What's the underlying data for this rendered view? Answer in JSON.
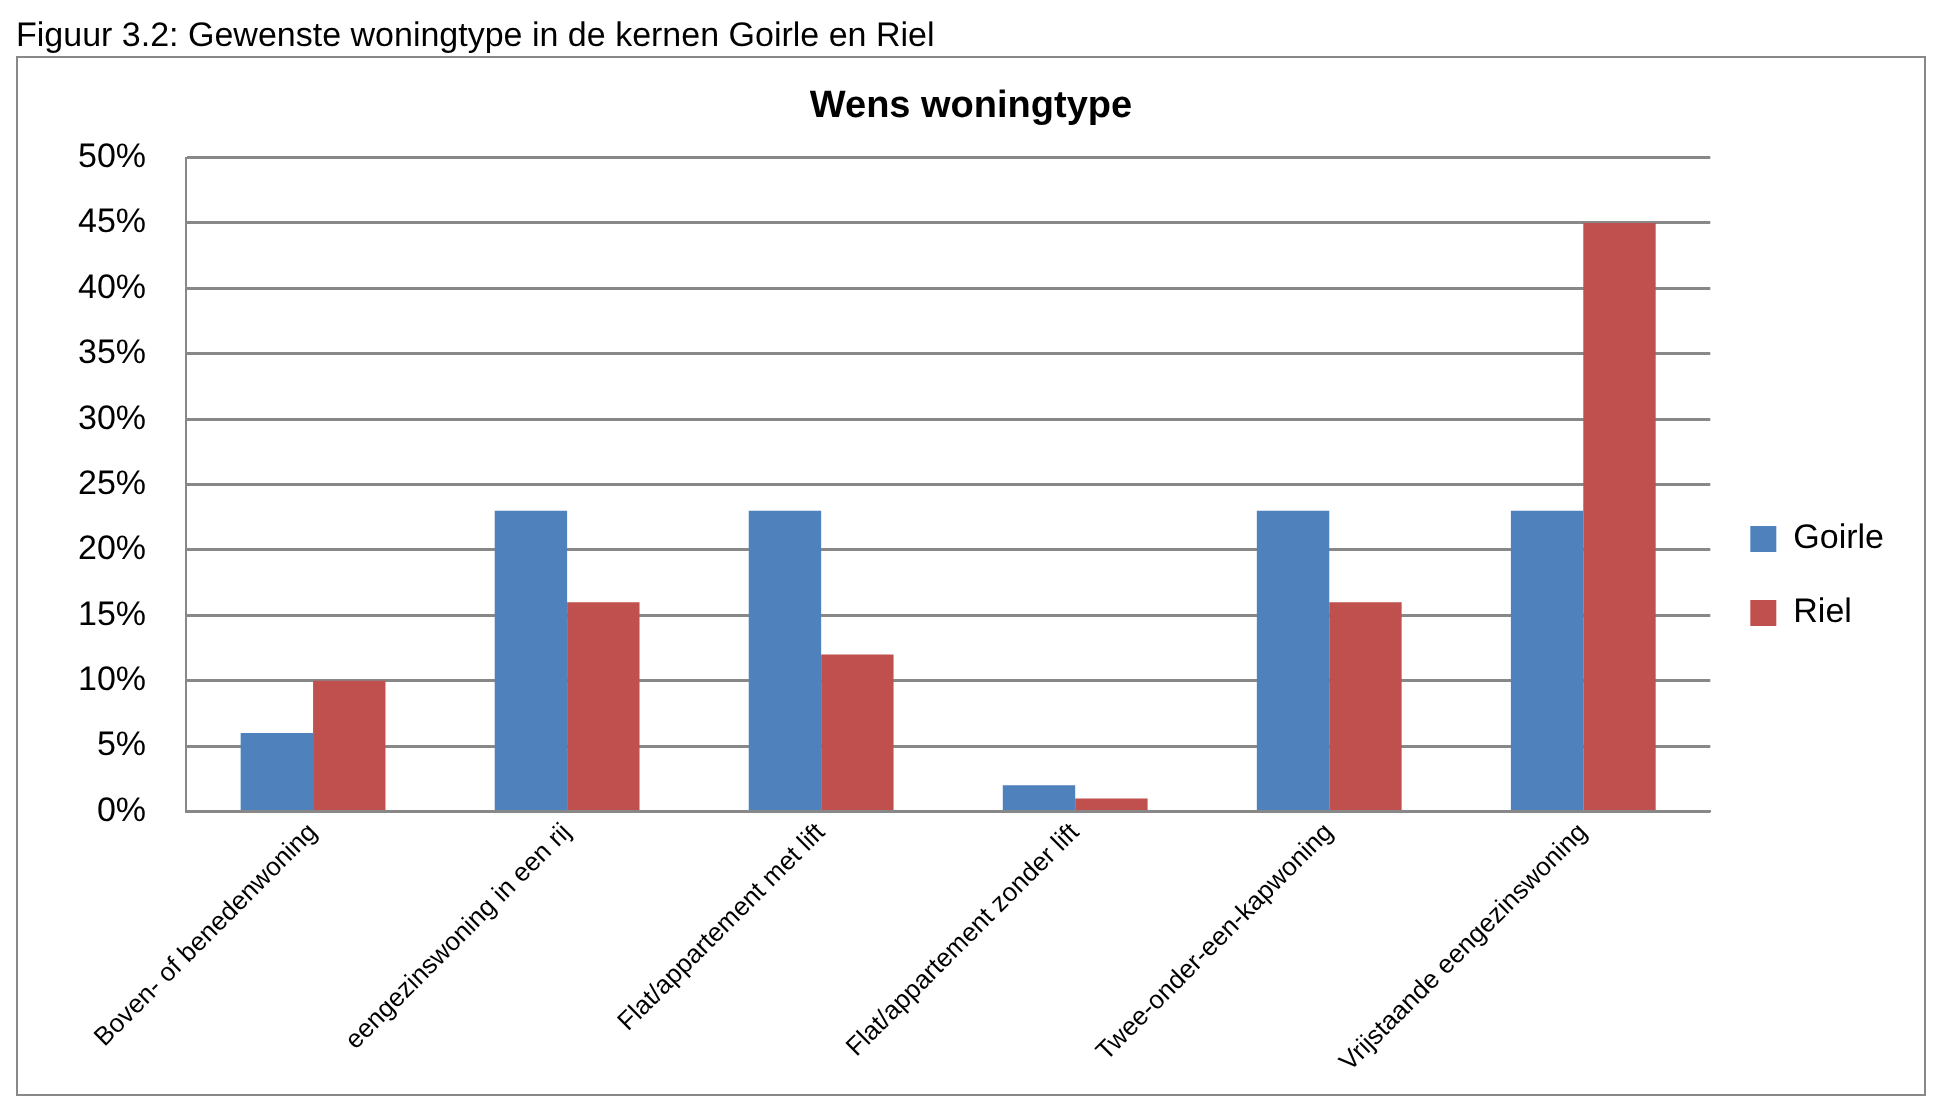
{
  "chart_data": {
    "type": "bar",
    "title": "Wens woningtype",
    "annotations": [
      "Figuur 3.2: Gewenste woningtype in de kernen Goirle en Riel"
    ],
    "categories": [
      "Boven- of benedenwoning",
      "eengezinswoning in een rij",
      "Flat/appartement met lift",
      "Flat/appartement zonder lift",
      "Twee-onder-een-kapwoning",
      "Vrijstaande eengezinswoning"
    ],
    "series": [
      {
        "name": "Goirle",
        "color": "#4f81bd",
        "values": [
          6,
          23,
          23,
          2,
          23,
          23
        ]
      },
      {
        "name": "Riel",
        "color": "#c0504d",
        "values": [
          10,
          16,
          12,
          1,
          16,
          45
        ]
      }
    ],
    "ylim": [
      0,
      50
    ],
    "yticks": [
      {
        "value": 0,
        "label": "0%"
      },
      {
        "value": 5,
        "label": "5%"
      },
      {
        "value": 10,
        "label": "10%"
      },
      {
        "value": 15,
        "label": "15%"
      },
      {
        "value": 20,
        "label": "20%"
      },
      {
        "value": 25,
        "label": "25%"
      },
      {
        "value": 30,
        "label": "30%"
      },
      {
        "value": 35,
        "label": "35%"
      },
      {
        "value": 40,
        "label": "40%"
      },
      {
        "value": 45,
        "label": "45%"
      },
      {
        "value": 50,
        "label": "50%"
      }
    ],
    "grid": "y",
    "legend": "right"
  }
}
